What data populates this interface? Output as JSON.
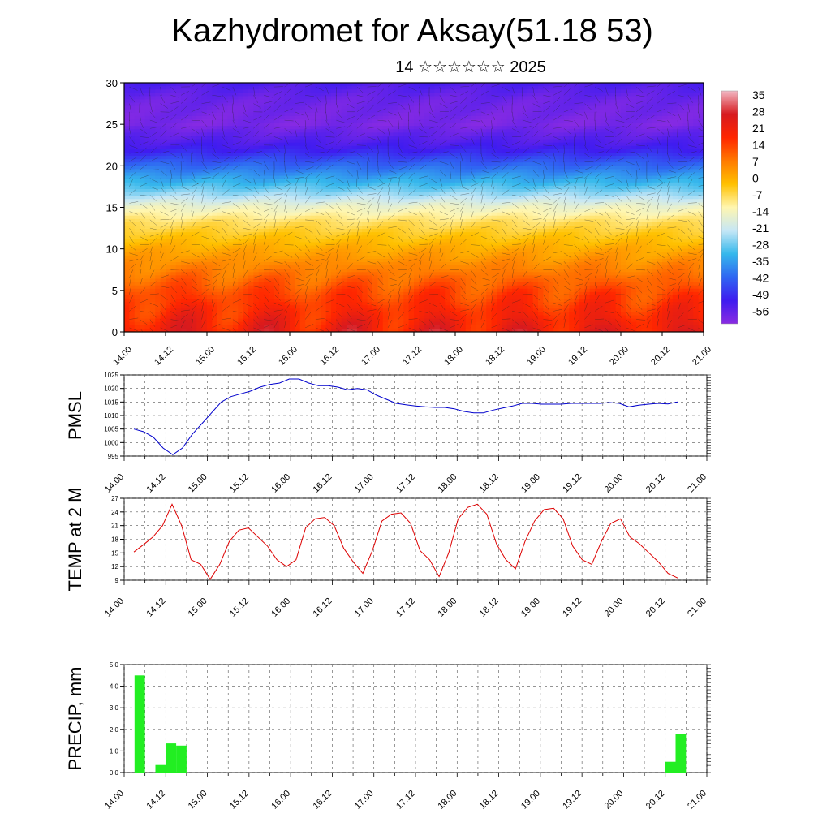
{
  "title": "Kazhydromet for Aksay(51.18 53)",
  "subtitle": "14 ☆☆☆☆☆☆ 2025",
  "chart_data": [
    {
      "type": "heatmap",
      "name": "temperature-cross-section",
      "title": "",
      "ylim": [
        0,
        30
      ],
      "y_ticks": [
        0,
        5,
        10,
        15,
        20,
        25,
        30
      ],
      "x_tick_labels": [
        "14.00",
        "14.12",
        "15.00",
        "15.12",
        "16.00",
        "16.12",
        "17.00",
        "17.12",
        "18.00",
        "18.12",
        "19.00",
        "19.12",
        "20.00",
        "20.12",
        "21.00"
      ],
      "colorbar": {
        "labels": [
          "35",
          "28",
          "21",
          "14",
          "7",
          "0",
          "-7",
          "-14",
          "-21",
          "-28",
          "-35",
          "-42",
          "-49",
          "-56"
        ],
        "range": [
          -60,
          38
        ],
        "colors": [
          "#f2b8c4",
          "#d71a1f",
          "#ff2600",
          "#ff7a00",
          "#ffc100",
          "#fff6b0",
          "#c6e7f6",
          "#35b8ec",
          "#2f66f2",
          "#3f1cf0",
          "#8a2be2"
        ]
      },
      "profile": {
        "levels": [
          0,
          5,
          10,
          13,
          15,
          17,
          20,
          22,
          25,
          28,
          30
        ],
        "temps": [
          23,
          14,
          2,
          -6,
          -14,
          -26,
          -40,
          -50,
          -58,
          -56,
          -52
        ]
      }
    },
    {
      "type": "line",
      "name": "pmsl",
      "ylabel": "PMSL",
      "ylim": [
        995,
        1025
      ],
      "y_ticks": [
        995,
        1000,
        1005,
        1010,
        1015,
        1020,
        1025
      ],
      "x_tick_labels": [
        "14.00",
        "14.12",
        "15.00",
        "15.12",
        "16.00",
        "16.12",
        "17.00",
        "17.12",
        "18.00",
        "18.12",
        "19.00",
        "19.12",
        "20.00",
        "20.12",
        "21.00"
      ],
      "color": "#0000cc",
      "series": [
        {
          "values": [
            1005,
            1004,
            1002,
            998,
            995.5,
            998,
            1003,
            1007,
            1011,
            1015,
            1017,
            1018,
            1019,
            1020.5,
            1021.5,
            1022,
            1023.5,
            1023.5,
            1022,
            1021,
            1021,
            1020.5,
            1019.5,
            1020,
            1019.5,
            1017.5,
            1016,
            1014.5,
            1014,
            1013.5,
            1013.2,
            1013,
            1013,
            1012.5,
            1011.5,
            1011,
            1011,
            1012,
            1012.8,
            1013.5,
            1014.5,
            1014.5,
            1014.2,
            1014.2,
            1014.2,
            1014.5,
            1014.5,
            1014.5,
            1014.5,
            1014.8,
            1014.5,
            1013.2,
            1013.8,
            1014.2,
            1014.5,
            1014.3,
            1015
          ]
        }
      ]
    },
    {
      "type": "line",
      "name": "temp-2m",
      "ylabel": "TEMP at 2 M",
      "ylim": [
        9,
        27
      ],
      "y_ticks": [
        9,
        12,
        15,
        18,
        21,
        24,
        27
      ],
      "x_tick_labels": [
        "14.00",
        "14.12",
        "15.00",
        "15.12",
        "16.00",
        "16.12",
        "17.00",
        "17.12",
        "18.00",
        "18.12",
        "19.00",
        "19.12",
        "20.00",
        "20.12",
        "21.00"
      ],
      "color": "#dd0000",
      "series": [
        {
          "values": [
            15.2,
            16.8,
            18.5,
            21,
            25.7,
            21,
            13.5,
            12.5,
            9.2,
            12.5,
            17.5,
            20,
            20.5,
            18.5,
            16.5,
            13.5,
            12,
            13.5,
            20.5,
            22.5,
            22.8,
            21,
            16,
            13,
            10.5,
            15.5,
            22,
            23.5,
            23.8,
            21.5,
            15.5,
            13.5,
            9.8,
            15,
            22.5,
            25,
            25.7,
            23.5,
            17,
            13.5,
            11.5,
            17.5,
            22,
            24.5,
            24.8,
            22.5,
            16.5,
            13.5,
            12.5,
            17.5,
            21.5,
            22.5,
            18.5,
            17,
            15,
            13,
            10.5,
            9.5
          ]
        }
      ]
    },
    {
      "type": "bar",
      "name": "precip",
      "ylabel": "PRECIP, mm",
      "ylim": [
        0,
        5
      ],
      "y_ticks": [
        "0.0",
        "1.0",
        "2.0",
        "3.0",
        "4.0",
        "5.0"
      ],
      "x_tick_labels": [
        "14.00",
        "14.12",
        "15.00",
        "15.12",
        "16.00",
        "16.12",
        "17.00",
        "17.12",
        "18.00",
        "18.12",
        "19.00",
        "19.12",
        "20.00",
        "20.12",
        "21.00"
      ],
      "color": "#22ee22",
      "bars": [
        {
          "t": 0.75,
          "value": 4.5
        },
        {
          "t": 1.75,
          "value": 0.35
        },
        {
          "t": 2.25,
          "value": 1.35
        },
        {
          "t": 2.75,
          "value": 1.25
        },
        {
          "t": 26.25,
          "value": 0.5
        },
        {
          "t": 26.75,
          "value": 1.8
        }
      ]
    }
  ]
}
